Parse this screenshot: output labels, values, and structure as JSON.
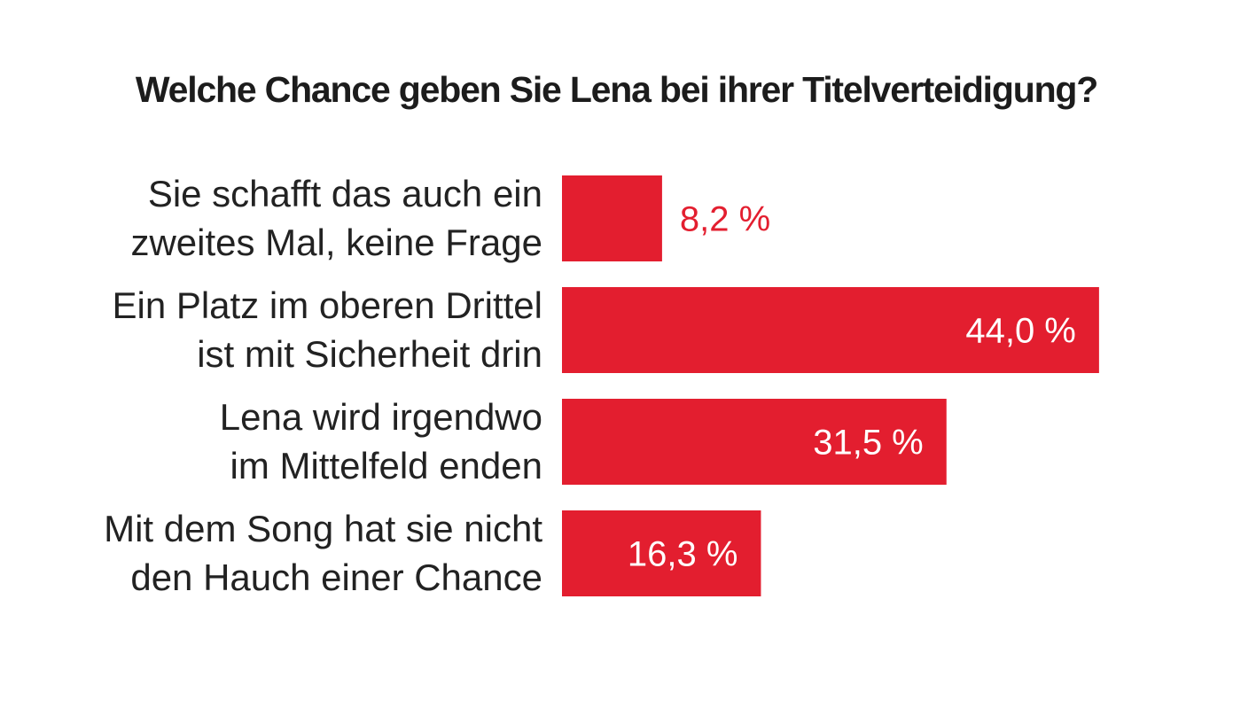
{
  "chart_data": {
    "type": "bar",
    "orientation": "horizontal",
    "title": "Welche Chance geben Sie Lena bei ihrer Titelverteidigung?",
    "categories": [
      [
        "Sie schafft das auch ein",
        "zweites Mal, keine Frage"
      ],
      [
        "Ein Platz im oberen Drittel",
        "ist mit Sicherheit drin"
      ],
      [
        "Lena wird irgendwo",
        "im Mittelfeld enden"
      ],
      [
        "Mit dem Song hat sie nicht",
        "den Hauch einer Chance"
      ]
    ],
    "values": [
      8.2,
      44.0,
      31.5,
      16.3
    ],
    "value_labels": [
      "8,2 %",
      "44,0 %",
      "31,5 %",
      "16,3 %"
    ],
    "unit": "%",
    "grid": false,
    "colors": {
      "bar": "#e31e2f",
      "value_inside": "#ffffff",
      "value_outside": "#e31e2f",
      "text": "#222222"
    }
  }
}
